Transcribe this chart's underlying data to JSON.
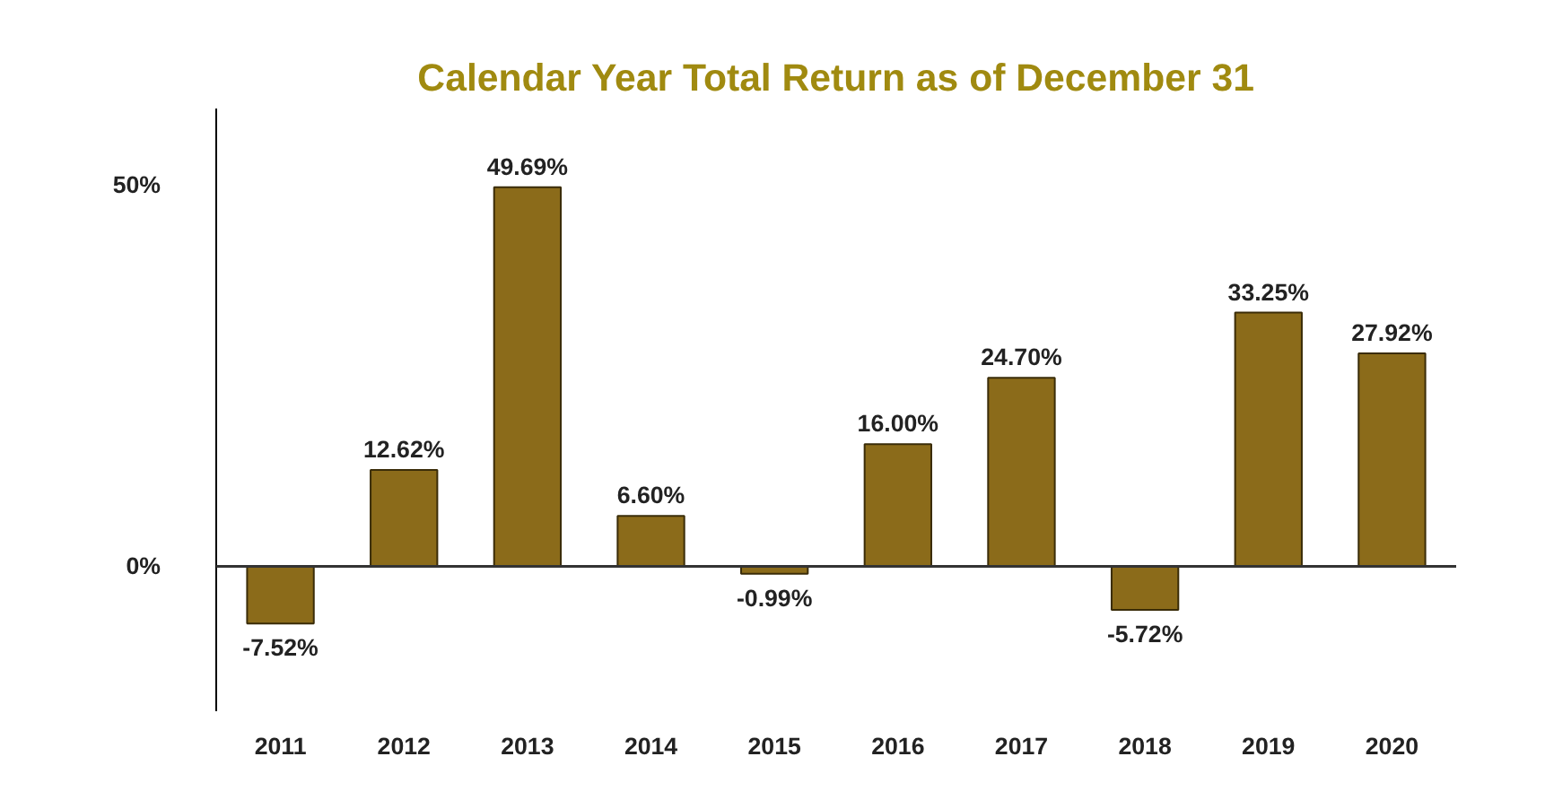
{
  "chart_data": {
    "type": "bar",
    "title": "Calendar Year Total Return as of December 31",
    "categories": [
      "2011",
      "2012",
      "2013",
      "2014",
      "2015",
      "2016",
      "2017",
      "2018",
      "2019",
      "2020"
    ],
    "values": [
      -7.52,
      12.62,
      49.69,
      6.6,
      -0.99,
      16.0,
      24.7,
      -5.72,
      33.25,
      27.92
    ],
    "value_labels": [
      "-7.52%",
      "12.62%",
      "49.69%",
      "6.60%",
      "-0.99%",
      "16.00%",
      "24.70%",
      "-5.72%",
      "33.25%",
      "27.92%"
    ],
    "color": "#8b6b1a",
    "ylim": [
      -19,
      60
    ],
    "yticks": [
      {
        "value": 0,
        "label": "0%"
      },
      {
        "value": 50,
        "label": "50%"
      }
    ],
    "ref_lines": [
      {
        "axis": "y",
        "value": 0,
        "color": "#333333"
      }
    ],
    "grid": false
  }
}
